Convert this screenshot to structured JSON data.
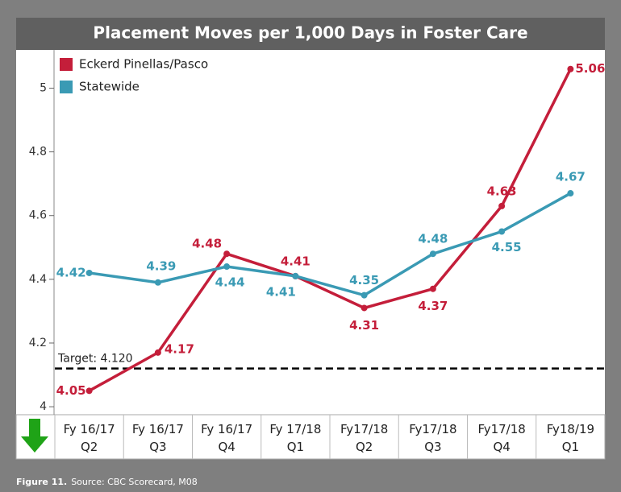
{
  "chart_data": {
    "type": "line",
    "title": "Placement Moves per 1,000 Days in Foster Care",
    "categories": [
      [
        "Fy 16/17",
        "Q2"
      ],
      [
        "Fy 16/17",
        "Q3"
      ],
      [
        "Fy 16/17",
        "Q4"
      ],
      [
        "Fy 17/18",
        "Q1"
      ],
      [
        "Fy17/18",
        "Q2"
      ],
      [
        "Fy17/18",
        "Q3"
      ],
      [
        "Fy17/18",
        "Q4"
      ],
      [
        "Fy18/19",
        "Q1"
      ]
    ],
    "series": [
      {
        "name": "Eckerd Pinellas/Pasco",
        "color": "#c41e3a",
        "values": [
          4.05,
          4.17,
          4.48,
          4.41,
          4.31,
          4.37,
          4.63,
          5.06
        ]
      },
      {
        "name": "Statewide",
        "color": "#3a9ab4",
        "values": [
          4.42,
          4.39,
          4.44,
          4.41,
          4.35,
          4.48,
          4.55,
          4.67
        ]
      }
    ],
    "ylim": [
      3.975,
      5.12
    ],
    "yticks": [
      4,
      4.2,
      4.4,
      4.6,
      4.8,
      5
    ],
    "target": 4.12,
    "target_label": "Target: 4.120",
    "figure_label": "Figure 11.",
    "source": "Source: CBC Scorecard, M08"
  }
}
